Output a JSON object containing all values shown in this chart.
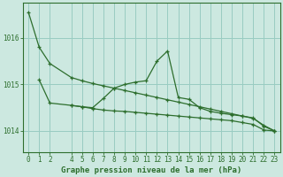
{
  "title": "Graphe pression niveau de la mer (hPa)",
  "bg_color": "#cce8e0",
  "grid_color": "#99ccc2",
  "line_color": "#2d6e2d",
  "xlim": [
    -0.5,
    23.5
  ],
  "ylim": [
    1013.55,
    1016.75
  ],
  "yticks": [
    1014,
    1015,
    1016
  ],
  "xticks": [
    0,
    1,
    2,
    4,
    5,
    6,
    7,
    8,
    9,
    10,
    11,
    12,
    13,
    14,
    15,
    16,
    17,
    18,
    19,
    20,
    21,
    22,
    23
  ],
  "s1_x": [
    0,
    1,
    2,
    4,
    5,
    6,
    7,
    8,
    9,
    10,
    11,
    12,
    13,
    14,
    15,
    16,
    17,
    18,
    19,
    20,
    21,
    22,
    23
  ],
  "s1_y": [
    1016.55,
    1015.8,
    1015.45,
    1015.15,
    1015.08,
    1015.02,
    1014.97,
    1014.92,
    1014.87,
    1014.82,
    1014.77,
    1014.72,
    1014.67,
    1014.62,
    1014.57,
    1014.52,
    1014.47,
    1014.42,
    1014.37,
    1014.32,
    1014.27,
    1014.12,
    1014.0
  ],
  "s2_x": [
    1,
    2,
    4,
    5,
    6,
    7,
    8,
    9,
    10,
    11,
    12,
    13,
    14,
    15,
    16,
    17,
    18,
    19,
    20,
    21,
    22,
    23
  ],
  "s2_y": [
    1015.1,
    1014.6,
    1014.55,
    1014.52,
    1014.5,
    1014.7,
    1014.92,
    1015.0,
    1015.05,
    1015.08,
    1015.5,
    1015.72,
    1014.72,
    1014.68,
    1014.5,
    1014.42,
    1014.38,
    1014.35,
    1014.32,
    1014.28,
    1014.1,
    1014.0
  ],
  "s3_x": [
    4,
    5,
    6,
    7,
    8,
    9,
    10,
    11,
    12,
    13,
    14,
    15,
    16,
    17,
    18,
    19,
    20,
    21,
    22,
    23
  ],
  "s3_y": [
    1014.55,
    1014.52,
    1014.48,
    1014.45,
    1014.43,
    1014.42,
    1014.4,
    1014.38,
    1014.36,
    1014.34,
    1014.32,
    1014.3,
    1014.28,
    1014.26,
    1014.24,
    1014.22,
    1014.18,
    1014.14,
    1014.02,
    1014.0
  ],
  "ylabel_fontsize": 5.5,
  "xlabel_fontsize": 6.5,
  "tick_fontsize": 5.5
}
